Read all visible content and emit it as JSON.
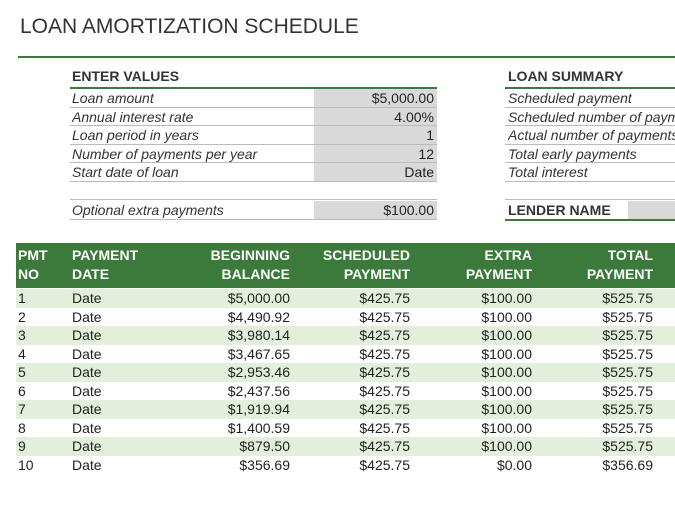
{
  "header": {
    "title": "LOAN AMORTIZATION SCHEDULE"
  },
  "enter_values": {
    "heading": "ENTER VALUES",
    "rows": [
      [
        "Loan amount",
        "$5,000.00"
      ],
      [
        "Annual interest rate",
        "4.00%"
      ],
      [
        "Loan period in years",
        "1"
      ],
      [
        "Number of payments per year",
        "12"
      ],
      [
        "Start date of loan",
        "Date"
      ]
    ],
    "extra": [
      "Optional extra payments",
      "$100.00"
    ]
  },
  "loan_summary": {
    "heading": "LOAN SUMMARY",
    "rows": [
      "Scheduled payment",
      "Scheduled number of paym",
      "Actual number of payments",
      "Total early payments",
      "Total interest"
    ],
    "lender": "LENDER NAME"
  },
  "table": {
    "columns": [
      [
        "PMT",
        "NO"
      ],
      [
        "PAYMENT",
        "DATE"
      ],
      [
        "BEGINNING",
        "BALANCE"
      ],
      [
        "SCHEDULED",
        "PAYMENT"
      ],
      [
        "EXTRA",
        "PAYMENT"
      ],
      [
        "TOTAL",
        "PAYMENT"
      ]
    ],
    "rows": [
      [
        "1",
        "Date",
        "$5,000.00",
        "$425.75",
        "$100.00",
        "$525.75"
      ],
      [
        "2",
        "Date",
        "$4,490.92",
        "$425.75",
        "$100.00",
        "$525.75"
      ],
      [
        "3",
        "Date",
        "$3,980.14",
        "$425.75",
        "$100.00",
        "$525.75"
      ],
      [
        "4",
        "Date",
        "$3,467.65",
        "$425.75",
        "$100.00",
        "$525.75"
      ],
      [
        "5",
        "Date",
        "$2,953.46",
        "$425.75",
        "$100.00",
        "$525.75"
      ],
      [
        "6",
        "Date",
        "$2,437.56",
        "$425.75",
        "$100.00",
        "$525.75"
      ],
      [
        "7",
        "Date",
        "$1,919.94",
        "$425.75",
        "$100.00",
        "$525.75"
      ],
      [
        "8",
        "Date",
        "$1,400.59",
        "$425.75",
        "$100.00",
        "$525.75"
      ],
      [
        "9",
        "Date",
        "$879.50",
        "$425.75",
        "$100.00",
        "$525.75"
      ],
      [
        "10",
        "Date",
        "$356.69",
        "$425.75",
        "$0.00",
        "$356.69"
      ]
    ]
  }
}
